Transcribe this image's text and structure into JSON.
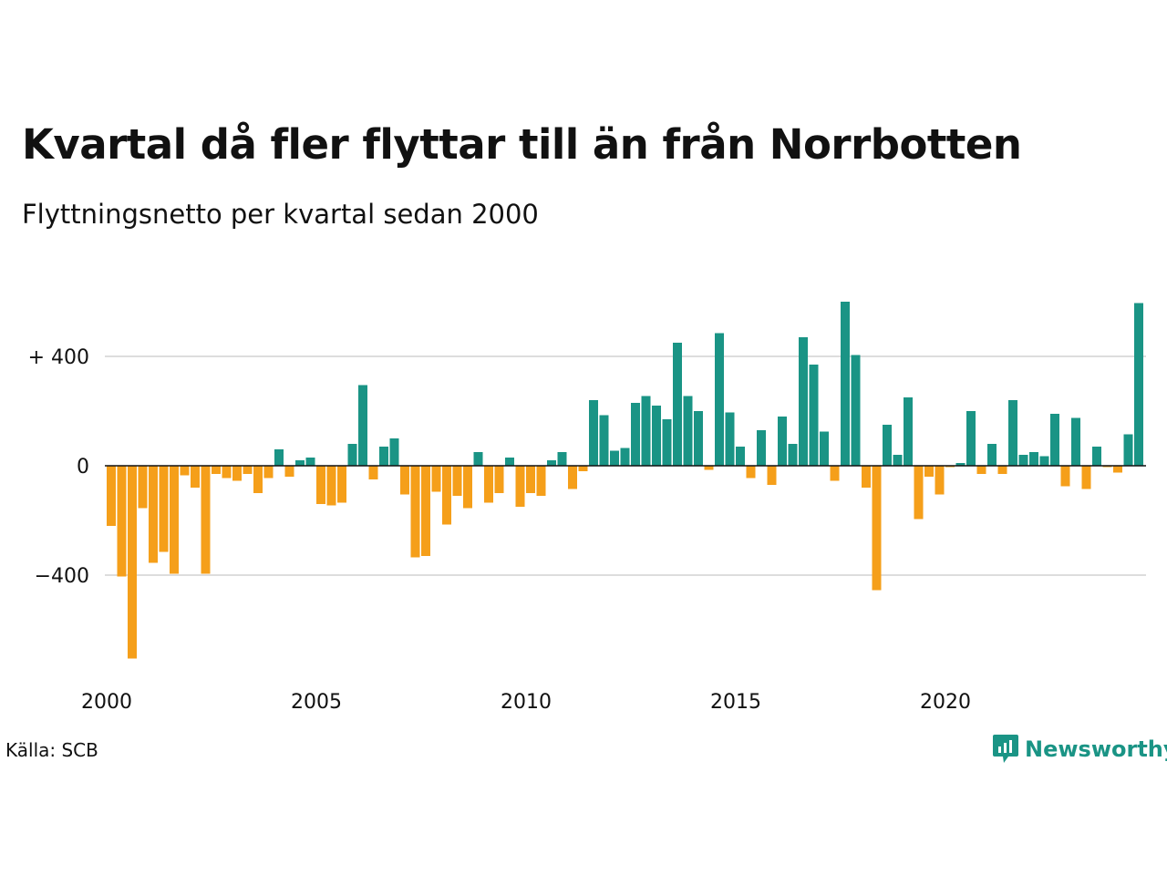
{
  "title": "Kvartal då fler flyttar till än från Norrbotten",
  "subtitle": "Flyttningsnetto per kvartal sedan 2000",
  "source": "Källa: SCB",
  "brand": {
    "name": "Newsworthy",
    "icon": "newsworthy-logo-icon"
  },
  "colors": {
    "positive": "#1a9485",
    "negative": "#f59f1a",
    "grid": "#dddddd",
    "zero_line": "#111111"
  },
  "chart_data": {
    "type": "bar",
    "title": "Kvartal då fler flyttar till än från Norrbotten",
    "subtitle": "Flyttningsnetto per kvartal sedan 2000",
    "xlabel": "",
    "ylabel": "",
    "x_ticks": [
      "2000",
      "2005",
      "2010",
      "2015",
      "2020"
    ],
    "y_ticks": [
      {
        "value": 400,
        "label": "+ 400"
      },
      {
        "value": 0,
        "label": "0"
      },
      {
        "value": -400,
        "label": "−400"
      }
    ],
    "ylim": [
      -740,
      600
    ],
    "grid": true,
    "legend": "none",
    "categories": [
      "2000 K1",
      "2000 K2",
      "2000 K3",
      "2000 K4",
      "2001 K1",
      "2001 K2",
      "2001 K3",
      "2001 K4",
      "2002 K1",
      "2002 K2",
      "2002 K3",
      "2002 K4",
      "2003 K1",
      "2003 K2",
      "2003 K3",
      "2003 K4",
      "2004 K1",
      "2004 K2",
      "2004 K3",
      "2004 K4",
      "2005 K1",
      "2005 K2",
      "2005 K3",
      "2005 K4",
      "2006 K1",
      "2006 K2",
      "2006 K3",
      "2006 K4",
      "2007 K1",
      "2007 K2",
      "2007 K3",
      "2007 K4",
      "2008 K1",
      "2008 K2",
      "2008 K3",
      "2008 K4",
      "2009 K1",
      "2009 K2",
      "2009 K3",
      "2009 K4",
      "2010 K1",
      "2010 K2",
      "2010 K3",
      "2010 K4",
      "2011 K1",
      "2011 K2",
      "2011 K3",
      "2011 K4",
      "2012 K1",
      "2012 K2",
      "2012 K3",
      "2012 K4",
      "2013 K1",
      "2013 K2",
      "2013 K3",
      "2013 K4",
      "2014 K1",
      "2014 K2",
      "2014 K3",
      "2014 K4",
      "2015 K1",
      "2015 K2",
      "2015 K3",
      "2015 K4",
      "2016 K1",
      "2016 K2",
      "2016 K3",
      "2016 K4",
      "2017 K1",
      "2017 K2",
      "2017 K3",
      "2017 K4",
      "2018 K1",
      "2018 K2",
      "2018 K3",
      "2018 K4",
      "2019 K1",
      "2019 K2",
      "2019 K3",
      "2019 K4",
      "2020 K1",
      "2020 K2",
      "2020 K3",
      "2020 K4",
      "2021 K1",
      "2021 K2",
      "2021 K3",
      "2021 K4",
      "2022 K1",
      "2022 K2",
      "2022 K3",
      "2022 K4",
      "2023 K1",
      "2023 K2",
      "2023 K3",
      "2023 K4",
      "2024 K1",
      "2024 K2",
      "2024 K3",
      "2024 K4"
    ],
    "values": [
      -220,
      -405,
      -705,
      -155,
      -355,
      -315,
      -395,
      -35,
      -80,
      -395,
      -30,
      -45,
      -55,
      -30,
      -100,
      -45,
      60,
      -40,
      20,
      30,
      -140,
      -145,
      -135,
      80,
      295,
      -50,
      70,
      100,
      -105,
      -335,
      -330,
      -95,
      -215,
      -110,
      -155,
      50,
      -135,
      -100,
      30,
      -150,
      -100,
      -110,
      20,
      50,
      -85,
      -20,
      240,
      185,
      55,
      65,
      230,
      255,
      220,
      170,
      450,
      255,
      200,
      -15,
      485,
      195,
      70,
      -45,
      130,
      -70,
      180,
      80,
      470,
      370,
      125,
      -55,
      600,
      405,
      -80,
      -455,
      150,
      40,
      250,
      -195,
      -40,
      -105,
      -5,
      10,
      200,
      -30,
      80,
      -30,
      240,
      40,
      50,
      35,
      190,
      -75,
      175,
      -85,
      70,
      -5,
      -25,
      115,
      595,
      null
    ]
  }
}
